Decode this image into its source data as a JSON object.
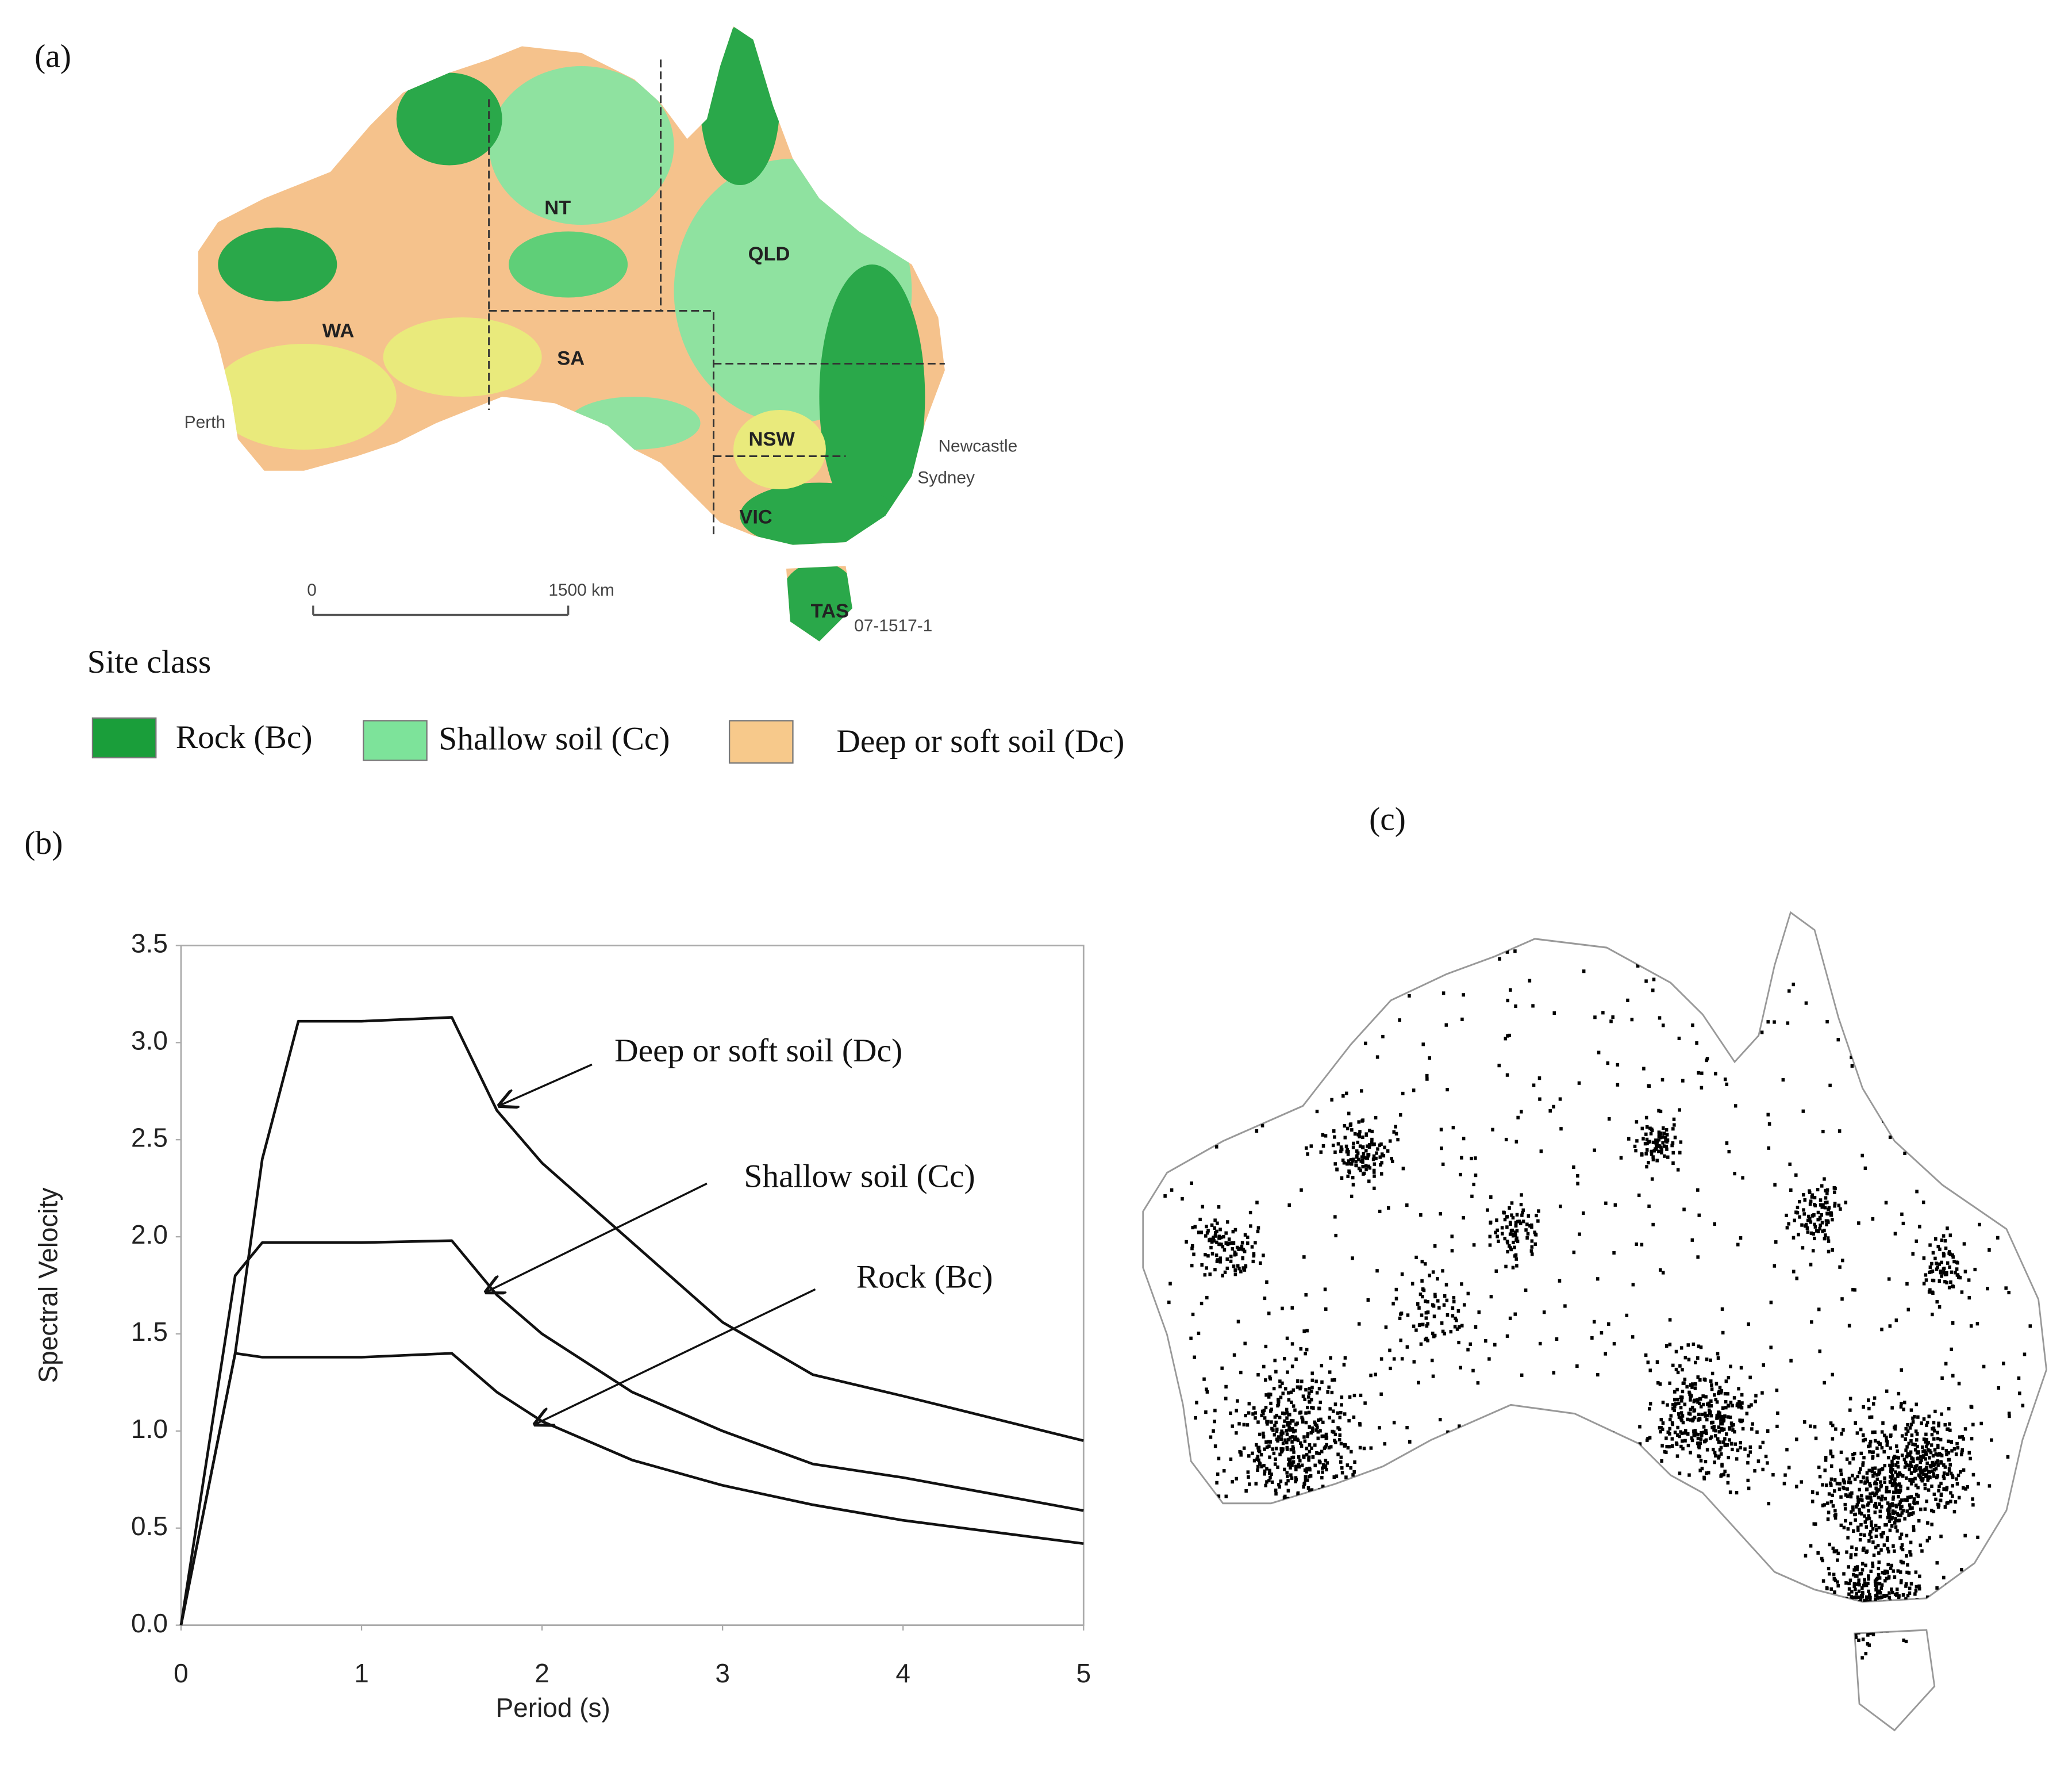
{
  "panel_a": {
    "label": "(a)",
    "regions": [
      "NT",
      "QLD",
      "WA",
      "SA",
      "NSW",
      "VIC",
      "TAS"
    ],
    "cities": [
      "Perth",
      "Newcastle",
      "Sydney"
    ],
    "scale": [
      "0",
      "1500 km"
    ],
    "map_code": "07-1517-1",
    "legend_title": "Site class",
    "legend": [
      "Rock (Bc)",
      "Shallow soil (Cc)",
      "Deep or soft soil (Dc)"
    ]
  },
  "chart_data": {
    "type": "line",
    "panel_label": "(b)",
    "x_label": "Period (s)",
    "y_label": "Spectral Velocity",
    "x": [
      0,
      0.3,
      0.45,
      0.65,
      1,
      1.5,
      1.75,
      2,
      2.5,
      3,
      3.5,
      4,
      5
    ],
    "series": [
      {
        "name": "Deep or soft soil (Dc)",
        "color": "#111111",
        "values": [
          0,
          1.4,
          2.4,
          3.11,
          3.11,
          3.13,
          2.65,
          2.38,
          1.97,
          1.56,
          1.29,
          1.18,
          0.95
        ]
      },
      {
        "name": "Shallow soil (Cc)",
        "color": "#111111",
        "values": [
          0,
          1.8,
          1.97,
          1.97,
          1.97,
          1.98,
          1.7,
          1.5,
          1.2,
          1.0,
          0.83,
          0.76,
          0.59
        ]
      },
      {
        "name": "Rock (Bc)",
        "color": "#111111",
        "values": [
          0,
          1.4,
          1.38,
          1.38,
          1.38,
          1.4,
          1.2,
          1.05,
          0.85,
          0.72,
          0.62,
          0.54,
          0.42
        ]
      }
    ],
    "xlim": [
      0,
      5
    ],
    "xticks": [
      0,
      1,
      2,
      3,
      4,
      5
    ],
    "ylim": [
      0,
      3.5
    ],
    "yticks": [
      {
        "value": 0,
        "label": "0.0"
      },
      0.5,
      {
        "value": 1,
        "label": "1.0"
      },
      1.5,
      {
        "value": 2,
        "label": "2.0"
      },
      2.5,
      {
        "value": 3,
        "label": "3.0"
      },
      3.5
    ],
    "grid": false
  },
  "panel_c": {
    "label": "(c)"
  }
}
